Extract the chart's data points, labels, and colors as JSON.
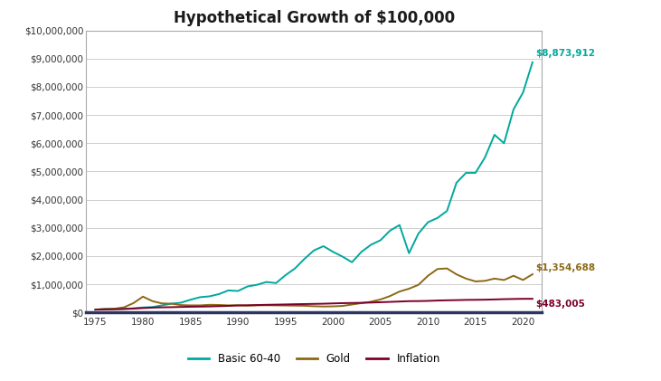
{
  "title": "Hypothetical Growth of $100,000",
  "title_fontsize": 12,
  "background_color": "#ffffff",
  "plot_bg_color": "#ffffff",
  "grid_color": "#c8c8c8",
  "years": [
    1975,
    1976,
    1977,
    1978,
    1979,
    1980,
    1981,
    1982,
    1983,
    1984,
    1985,
    1986,
    1987,
    1988,
    1989,
    1990,
    1991,
    1992,
    1993,
    1994,
    1995,
    1996,
    1997,
    1998,
    1999,
    2000,
    2001,
    2002,
    2003,
    2004,
    2005,
    2006,
    2007,
    2008,
    2009,
    2010,
    2011,
    2012,
    2013,
    2014,
    2015,
    2016,
    2017,
    2018,
    2019,
    2020,
    2021
  ],
  "basic_6040": [
    100000,
    122000,
    118000,
    128000,
    145000,
    175000,
    190000,
    250000,
    310000,
    345000,
    450000,
    540000,
    570000,
    650000,
    780000,
    760000,
    920000,
    980000,
    1080000,
    1040000,
    1320000,
    1560000,
    1900000,
    2200000,
    2350000,
    2150000,
    1980000,
    1780000,
    2150000,
    2400000,
    2560000,
    2900000,
    3100000,
    2100000,
    2800000,
    3200000,
    3350000,
    3600000,
    4600000,
    4950000,
    4950000,
    5500000,
    6300000,
    6000000,
    7200000,
    7800000,
    8873912
  ],
  "gold": [
    100000,
    120000,
    132000,
    180000,
    330000,
    560000,
    400000,
    320000,
    310000,
    260000,
    250000,
    250000,
    270000,
    265000,
    250000,
    255000,
    240000,
    250000,
    255000,
    250000,
    245000,
    240000,
    235000,
    220000,
    210000,
    215000,
    230000,
    280000,
    330000,
    380000,
    460000,
    580000,
    740000,
    840000,
    980000,
    1300000,
    1540000,
    1560000,
    1350000,
    1200000,
    1100000,
    1120000,
    1200000,
    1150000,
    1300000,
    1150000,
    1354688
  ],
  "inflation": [
    100000,
    106000,
    113000,
    122000,
    136000,
    154000,
    170000,
    181000,
    186000,
    194000,
    202000,
    206000,
    213000,
    222000,
    233000,
    246000,
    254000,
    262000,
    270000,
    276000,
    283000,
    291000,
    297000,
    303000,
    309000,
    319000,
    329000,
    335000,
    341000,
    350000,
    362000,
    374000,
    386000,
    400000,
    402000,
    409000,
    422000,
    430000,
    436000,
    444000,
    447000,
    452000,
    461000,
    471000,
    477000,
    483005,
    483005
  ],
  "basic_6040_color": "#00a89d",
  "gold_color": "#8B6914",
  "inflation_color": "#7B0028",
  "final_basic_label": "$8,873,912",
  "final_gold_label": "$1,354,688",
  "final_inflation_label": "$483,005",
  "ylim": [
    0,
    10000000
  ],
  "yticks": [
    0,
    1000000,
    2000000,
    3000000,
    4000000,
    5000000,
    6000000,
    7000000,
    8000000,
    9000000,
    10000000
  ],
  "xticks": [
    1975,
    1980,
    1985,
    1990,
    1995,
    2000,
    2005,
    2010,
    2015,
    2020
  ],
  "legend_labels": [
    "Basic 60-40",
    "Gold",
    "Inflation"
  ],
  "line_width": 1.4,
  "border_color": "#2d3561",
  "spine_color": "#aaaaaa"
}
